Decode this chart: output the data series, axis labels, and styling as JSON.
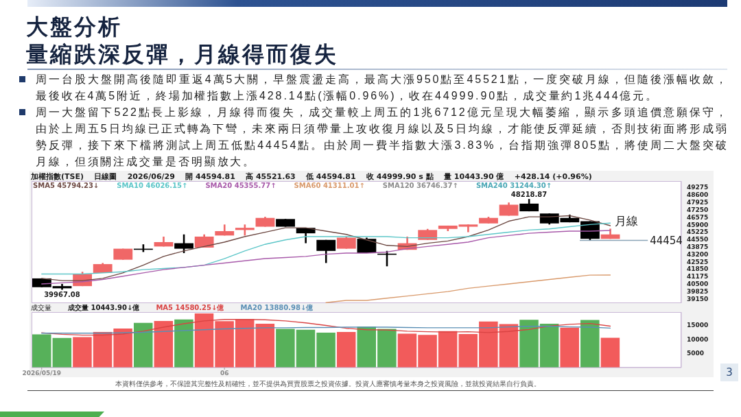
{
  "chart_data": [
    {
      "type": "candlestick",
      "title": "大盤分析",
      "subtitle": "量縮跌深反彈，月線得而復失",
      "annotations": [
        "周一台股大盤開高後隨即重返4萬5大關，早盤震盪走高，最高大漲950點至45521點，一度突破月線，但隨後漲幅收斂，最後收在4萬5附近，終場加權指數上漲428.14點(漲幅0.96%)，收在44999.90點，成交量約1兆444億元。",
        "周一大盤留下522點長上影線，月線得而復失，成交量較上周五的1兆6712億元呈現大幅萎縮，顯示多頭追價意願保守，由於上周五5日均線已正式轉為下彎，未來兩日須帶量上攻收復月線以及5日均線，才能使反彈延續，否則技術面將形成弱勢反彈，接下來下檔將測試上周五低點44454點。由於周一費半指數大漲3.83%，台指期強彈805點，將使周二大盤突破月線，但須關注成交量是否明顯放大。",
        "加權指數(TSE)    日線圖    2026/06/29    開 44594.81    高 45521.63    低 44594.81    收 44999.90 s 點    量 10443.90 億    +428.14 (+0.96%)",
        "月線",
        {
          "text": "39967.08",
          "y": 39967.08
        },
        {
          "text": "48218.87",
          "y": 48218.87
        }
      ],
      "categories": [
        null,
        null,
        null,
        null,
        null,
        null,
        null,
        null,
        null,
        null,
        null,
        null,
        null,
        null,
        null,
        null,
        null,
        null,
        null,
        null,
        null,
        null,
        null,
        null,
        null,
        null,
        null,
        null,
        null,
        null,
        null,
        null
      ],
      "ohlc": [
        [
          41000,
          41000,
          40200,
          40200
        ],
        [
          40300,
          40500,
          39967.08,
          40100
        ],
        [
          40300,
          41600,
          40300,
          41400
        ],
        [
          41500,
          42400,
          41500,
          42300
        ],
        [
          42700,
          43700,
          42700,
          43700
        ],
        [
          43700,
          44100,
          43400,
          43600
        ],
        [
          43900,
          44800,
          43900,
          44300
        ],
        [
          44200,
          45000,
          43300,
          43700
        ],
        [
          43800,
          45000,
          43800,
          44800
        ],
        [
          44900,
          45900,
          44900,
          45300
        ],
        [
          45400,
          45900,
          44900,
          45600
        ],
        [
          45700,
          46600,
          45700,
          46500
        ],
        [
          46400,
          46400,
          45700,
          45700
        ],
        [
          45600,
          45600,
          44200,
          45100
        ],
        [
          44500,
          44500,
          42400,
          43500
        ],
        [
          43700,
          44800,
          43700,
          44700
        ],
        [
          44600,
          44700,
          43300,
          43300
        ],
        [
          43250,
          43500,
          42100,
          43150
        ],
        [
          43600,
          44800,
          43600,
          44200
        ],
        [
          44500,
          45500,
          44500,
          45400
        ],
        [
          45500,
          45800,
          45300,
          45800
        ],
        [
          45700,
          45900,
          45200,
          45900
        ],
        [
          46000,
          46600,
          46000,
          46500
        ],
        [
          46700,
          47900,
          46700,
          47700
        ],
        [
          47800,
          48218.87,
          47100,
          47100
        ],
        [
          46900,
          46900,
          45900,
          46000
        ],
        [
          46500,
          46800,
          46100,
          46100
        ],
        [
          46200,
          46200,
          44454,
          44600
        ],
        [
          44594.81,
          45521.63,
          44594.81,
          44999.9
        ],
        null,
        null,
        null
      ],
      "colors": [
        "#000000",
        "#000000",
        "#f06767",
        "#f06767",
        "#f06767",
        "#000000",
        "#f06767",
        "#000000",
        "#f06767",
        "#f06767",
        "#f06767",
        "#f06767",
        "#000000",
        "#000000",
        "#000000",
        "#f06767",
        "#000000",
        "#000000",
        "#f06767",
        "#f06767",
        "#f06767",
        "#f06767",
        "#f06767",
        "#f06767",
        "#000000",
        "#000000",
        "#000000",
        "#000000",
        "#f06767",
        null,
        null,
        null
      ],
      "series": [
        {
          "type": "line",
          "name": "SMA5 45794.23↓",
          "color": "#6e4a44",
          "values": [
            41000,
            40800,
            40800,
            41000,
            41500,
            42200,
            43000,
            43500,
            43900,
            44300,
            44800,
            45200,
            45600,
            45600,
            45300,
            45000,
            44500,
            44000,
            43900,
            44200,
            44400,
            44800,
            45400,
            46200,
            46600,
            46600,
            46700,
            46300,
            45794.23,
            null,
            null,
            null
          ]
        },
        {
          "type": "line",
          "name": "SMA10 46026.15↑",
          "color": "#5cc6c8",
          "values": [
            41400,
            41400,
            41400,
            41500,
            41600,
            41800,
            41900,
            42000,
            42200,
            42800,
            43500,
            44100,
            44500,
            44800,
            44800,
            44800,
            44800,
            44800,
            44700,
            44700,
            44700,
            44800,
            45000,
            45200,
            45400,
            45500,
            45700,
            45900,
            46026.15,
            null,
            null,
            null
          ]
        },
        {
          "type": "line",
          "name": "SMA20 45355.77↑",
          "color": "#a85aaa",
          "values": [
            40500,
            40600,
            40700,
            40900,
            41200,
            41500,
            41800,
            42000,
            42200,
            42400,
            42600,
            42800,
            42900,
            43000,
            43200,
            43300,
            43300,
            43400,
            43700,
            43900,
            44100,
            44300,
            44700,
            44900,
            45100,
            45200,
            45300,
            45300,
            45355.77,
            null,
            null,
            null
          ]
        },
        {
          "type": "line",
          "name": "SMA60 41311.01↑",
          "color": "#d99a6c",
          "values": [
            null,
            null,
            null,
            null,
            null,
            null,
            null,
            null,
            null,
            null,
            null,
            null,
            null,
            null,
            38800,
            39000,
            39000,
            39200,
            39400,
            39600,
            39800,
            40100,
            40300,
            40500,
            40700,
            40900,
            41100,
            41300,
            41311.01,
            null,
            null,
            null
          ]
        },
        {
          "type": "line",
          "name": "SMA120 36746.37↑",
          "color": "#8c8c8c",
          "values": [
            null,
            null,
            null,
            null,
            null,
            null,
            null,
            null,
            null,
            null,
            null,
            null,
            null,
            null,
            null,
            null,
            null,
            null,
            null,
            null,
            null,
            null,
            null,
            null,
            null,
            null,
            null,
            null,
            null,
            null,
            null,
            null
          ]
        },
        {
          "type": "line",
          "name": "SMA240 31244.30↑",
          "color": "#4aa7b5",
          "values": [
            null,
            null,
            null,
            null,
            null,
            null,
            null,
            null,
            null,
            null,
            null,
            null,
            null,
            null,
            null,
            null,
            null,
            null,
            null,
            null,
            null,
            null,
            null,
            null,
            null,
            null,
            null,
            null,
            null,
            null,
            null,
            null
          ]
        }
      ],
      "ylim": [
        38750,
        49850
      ],
      "yticks": [
        49275,
        48600,
        47925,
        47250,
        46575,
        45900,
        45225,
        44550,
        43875,
        43200,
        42525,
        41850,
        41175,
        40500,
        39825,
        39150
      ],
      "ref_lines": [
        {
          "axis": "y",
          "value": 44454,
          "label": "44454",
          "color": "#8aa3b6"
        }
      ],
      "tick_labels": "y",
      "legend": "top"
    },
    {
      "type": "bar",
      "title": "成交量",
      "annotations": [
        "成交量 10443.90↓億",
        "本資料僅供參考，不保證其完整性及精確性，並不提供為買賣股票之投資依據。投資人應審慎考量本身之投資風險，並就投資結果自行負責。",
        "3"
      ],
      "categories": [
        "2026/05/19",
        null,
        null,
        null,
        null,
        null,
        null,
        null,
        null,
        "06",
        null,
        null,
        null,
        null,
        null,
        null,
        null,
        null,
        null,
        null,
        null,
        null,
        null,
        null,
        null,
        null,
        null,
        null,
        null,
        null,
        null,
        null
      ],
      "series": [
        {
          "type": "bar",
          "colors": [
            "#57b15a",
            "#57b15a",
            "#f25b5b",
            "#f25b5b",
            "#f25b5b",
            "#57b15a",
            "#f25b5b",
            "#57b15a",
            "#f25b5b",
            "#f25b5b",
            "#f25b5b",
            "#f25b5b",
            "#57b15a",
            "#57b15a",
            "#57b15a",
            "#f25b5b",
            "#57b15a",
            "#57b15a",
            "#f25b5b",
            "#f25b5b",
            "#f25b5b",
            "#f25b5b",
            "#f25b5b",
            "#f25b5b",
            "#57b15a",
            "#57b15a",
            "#f25b5b",
            "#57b15a",
            "#f25b5b",
            null,
            null,
            null
          ],
          "values": [
            11700,
            10400,
            10700,
            12500,
            13700,
            15700,
            16400,
            16900,
            19000,
            16300,
            17100,
            15400,
            13600,
            13300,
            12300,
            12500,
            14400,
            13600,
            11900,
            11500,
            12800,
            11800,
            16200,
            15300,
            16800,
            15400,
            14000,
            16712,
            10443.9,
            null,
            null,
            null
          ]
        },
        {
          "type": "line",
          "name": "MA5 14580.25↓億",
          "color": "#d94343",
          "values": [
            12200,
            11700,
            11400,
            11400,
            11800,
            12800,
            14200,
            15400,
            16400,
            16900,
            16900,
            16800,
            16400,
            15700,
            14800,
            13800,
            13300,
            13200,
            12800,
            12600,
            12500,
            12600,
            12300,
            12700,
            13400,
            14600,
            15200,
            15500,
            14580.25,
            null,
            null,
            null
          ]
        },
        {
          "type": "line",
          "name": "MA20 13880.98↓億",
          "color": "#5a8fb5",
          "values": [
            12100,
            12100,
            12100,
            12100,
            12200,
            12400,
            12700,
            13000,
            13300,
            13600,
            13800,
            14000,
            14000,
            14100,
            14100,
            14200,
            14200,
            14200,
            14100,
            14000,
            14000,
            14000,
            14000,
            14300,
            14500,
            14500,
            14300,
            14200,
            13880.98,
            null,
            null,
            null
          ]
        }
      ],
      "ylim": [
        0,
        19500
      ],
      "yticks": [
        15000,
        10000,
        5000
      ],
      "legend": "top"
    }
  ]
}
